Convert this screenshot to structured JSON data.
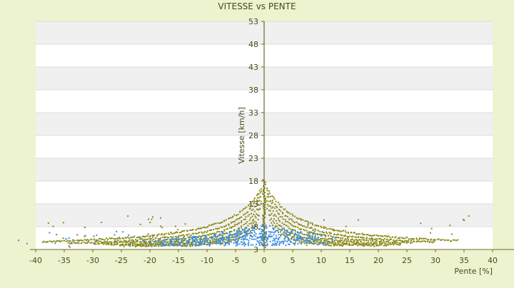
{
  "chart_data": {
    "type": "scatter",
    "title": "VITESSE vs PENTE",
    "xlabel": "Pente [%]",
    "ylabel": "Vitesse [km/h]",
    "xlim": [
      -40,
      40
    ],
    "ylim": [
      3,
      53
    ],
    "x_ticks": [
      -40,
      -35,
      -30,
      -25,
      -20,
      -15,
      -10,
      -5,
      0,
      5,
      10,
      15,
      20,
      25,
      30,
      35,
      40
    ],
    "y_ticks": [
      3,
      8,
      13,
      18,
      23,
      28,
      33,
      38,
      43,
      48,
      53
    ],
    "grid": true,
    "legend": "none",
    "colors": {
      "background": "#eef3cf",
      "plot_band_light": "#ffffff",
      "plot_band_dark": "#f0f0f0",
      "axis": "#6b6b2a",
      "curve_points": "#8a8a1a",
      "blue_points": "#3a8ee0"
    },
    "series": [
      {
        "style": "olive-dots",
        "description_points": "curved bands: speed decreasing with absolute slope",
        "points": []
      },
      {
        "style": "blue-dots",
        "points": []
      }
    ]
  }
}
